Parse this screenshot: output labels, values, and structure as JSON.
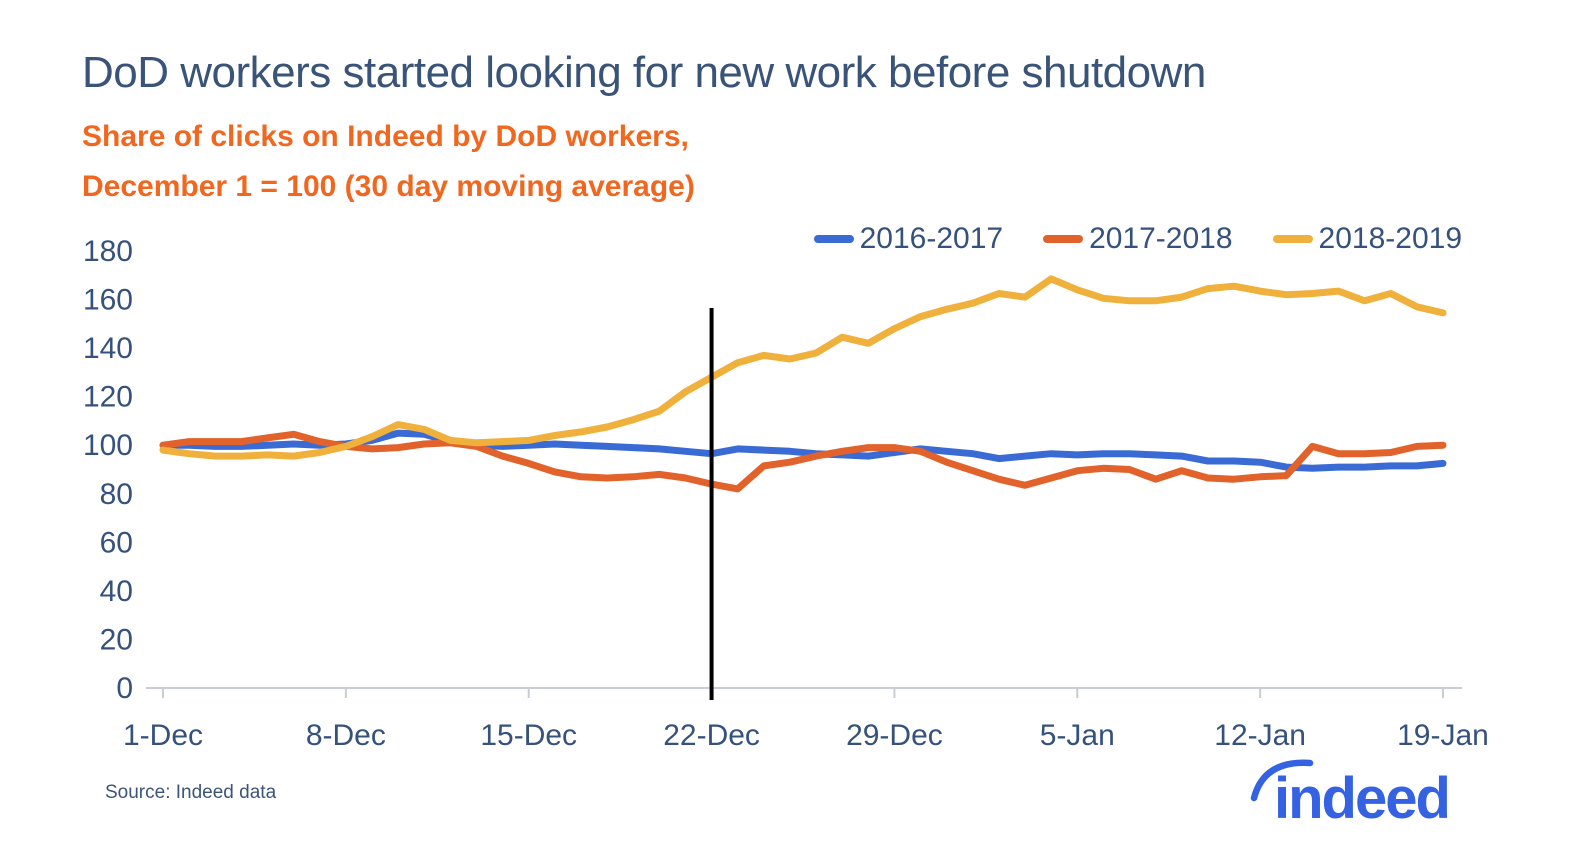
{
  "colors": {
    "text_navy": "#35517c",
    "title_navy": "#3a5378",
    "subtitle_orange": "#f1671f",
    "axis_line": "#c9cdd3",
    "event_line": "#000000",
    "logo_blue": "#3462e3",
    "background": "#ffffff"
  },
  "chart_data": {
    "type": "line",
    "title": "DoD workers started looking for new work before shutdown",
    "subtitle_line1": "Share of clicks on Indeed by DoD workers,",
    "subtitle_line2": "December 1 = 100 (30 day moving average)",
    "grid": false,
    "legend_position": "top-right",
    "ylim": [
      0,
      180
    ],
    "y_step": 20,
    "x_tick_labels": [
      "1-Dec",
      "8-Dec",
      "15-Dec",
      "22-Dec",
      "29-Dec",
      "5-Jan",
      "12-Jan",
      "19-Jan"
    ],
    "x_tick_days": [
      0,
      7,
      14,
      21,
      28,
      35,
      42,
      49
    ],
    "x_range_days": 50,
    "event_line": {
      "label": "22-Dec",
      "day": 21
    },
    "series": [
      {
        "name": "2016-2017",
        "color": "#3a6bd4",
        "values": [
          100,
          100,
          99.5,
          99.5,
          100,
          100.5,
          100,
          100.5,
          102,
          105,
          104.5,
          101.5,
          100,
          99.5,
          100,
          100.5,
          100,
          99.5,
          99,
          98.5,
          97.5,
          96.5,
          98.5,
          98,
          97.5,
          96.5,
          96,
          95.5,
          97,
          98.5,
          97.5,
          96.5,
          94.5,
          95.5,
          96.5,
          96,
          96.5,
          96.5,
          96,
          95.5,
          93.5,
          93.5,
          93,
          91,
          90.5,
          91,
          91,
          91.5,
          91.5,
          92.5
        ]
      },
      {
        "name": "2017-2018",
        "color": "#e2622b",
        "values": [
          100,
          101.5,
          101.5,
          101.5,
          103,
          104.5,
          101.5,
          99.5,
          98.5,
          99,
          100.5,
          101,
          99.5,
          95.5,
          92.5,
          89,
          87,
          86.5,
          87,
          88,
          86.5,
          84,
          82,
          91.5,
          93,
          95.5,
          97.5,
          99,
          99,
          97.5,
          93,
          89.5,
          86,
          83.5,
          86.5,
          89.5,
          90.5,
          90,
          86,
          89.5,
          86.5,
          86,
          87,
          87.5,
          99.5,
          96.5,
          96.5,
          97,
          99.5,
          100
        ]
      },
      {
        "name": "2018-2019",
        "color": "#f0b03c",
        "values": [
          98,
          96.5,
          95.5,
          95.5,
          96,
          95.5,
          97,
          99.5,
          103.5,
          108.5,
          106.5,
          102,
          101,
          101.5,
          102,
          104,
          105.5,
          107.5,
          110.5,
          114,
          122,
          128,
          134,
          137,
          135.5,
          138,
          144.5,
          142,
          148,
          153,
          156,
          158.5,
          162.5,
          161,
          168.5,
          164,
          160.5,
          159.5,
          159.5,
          161,
          164.5,
          165.5,
          163.5,
          162,
          162.5,
          163.5,
          159.5,
          162.5,
          157,
          154.5
        ]
      }
    ]
  },
  "footer": {
    "source": "Source: Indeed data",
    "logo_text": "indeed"
  }
}
